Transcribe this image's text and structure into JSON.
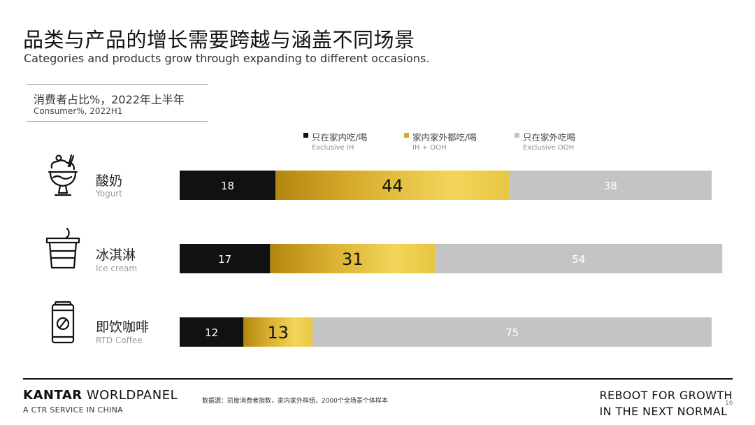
{
  "header": {
    "title": "品类与产品的增长需要跨越与涵盖不同场景",
    "subtitle": "Categories and products grow through expanding to different occasions."
  },
  "metric": {
    "label_zh": "消费者占比%，2022年上半年",
    "label_en": "Consumer%, 2022H1"
  },
  "legend": [
    {
      "label_zh": "只在家内吃/喝",
      "label_en": "Exclusive IH",
      "color": "#111111"
    },
    {
      "label_zh": "家内家外都吃/喝",
      "label_en": "IH + OOH",
      "color": "#d4a82a"
    },
    {
      "label_zh": "只在家外吃喝",
      "label_en": "Exclusive OOH",
      "color": "#c4c4c4"
    }
  ],
  "categories": [
    {
      "label_zh": "酸奶",
      "label_en": "Yogurt",
      "icon": "yogurt-sundae-icon"
    },
    {
      "label_zh": "冰淇淋",
      "label_en": "Ice cream",
      "icon": "ice-cream-cup-icon"
    },
    {
      "label_zh": "即饮咖啡",
      "label_en": "RTD Coffee",
      "icon": "coffee-can-icon"
    }
  ],
  "chart_data": {
    "type": "bar",
    "orientation": "horizontal",
    "stacked": true,
    "categories": [
      "酸奶",
      "冰淇淋",
      "即饮咖啡"
    ],
    "series": [
      {
        "name": "只在家内吃/喝",
        "values": [
          18,
          17,
          12
        ],
        "color": "#111111"
      },
      {
        "name": "家内家外都吃/喝",
        "values": [
          44,
          31,
          13
        ],
        "color": "#d4a82a"
      },
      {
        "name": "只在家外吃喝",
        "values": [
          38,
          54,
          75
        ],
        "color": "#c4c4c4"
      }
    ],
    "xlim": [
      0,
      100
    ],
    "grid": false,
    "legend": "top"
  },
  "footer": {
    "brand_bold": "KANTAR",
    "brand_light": " WORLDPANEL",
    "brand_sub": "A CTR SERVICE IN CHINA",
    "source": "数据源：凯度消费者指数，家内家外样组，2000个全场景个体样本",
    "tagline_1": "REBOOT FOR GROWTH",
    "tagline_2": "IN THE NEXT NORMAL",
    "page": "16"
  }
}
